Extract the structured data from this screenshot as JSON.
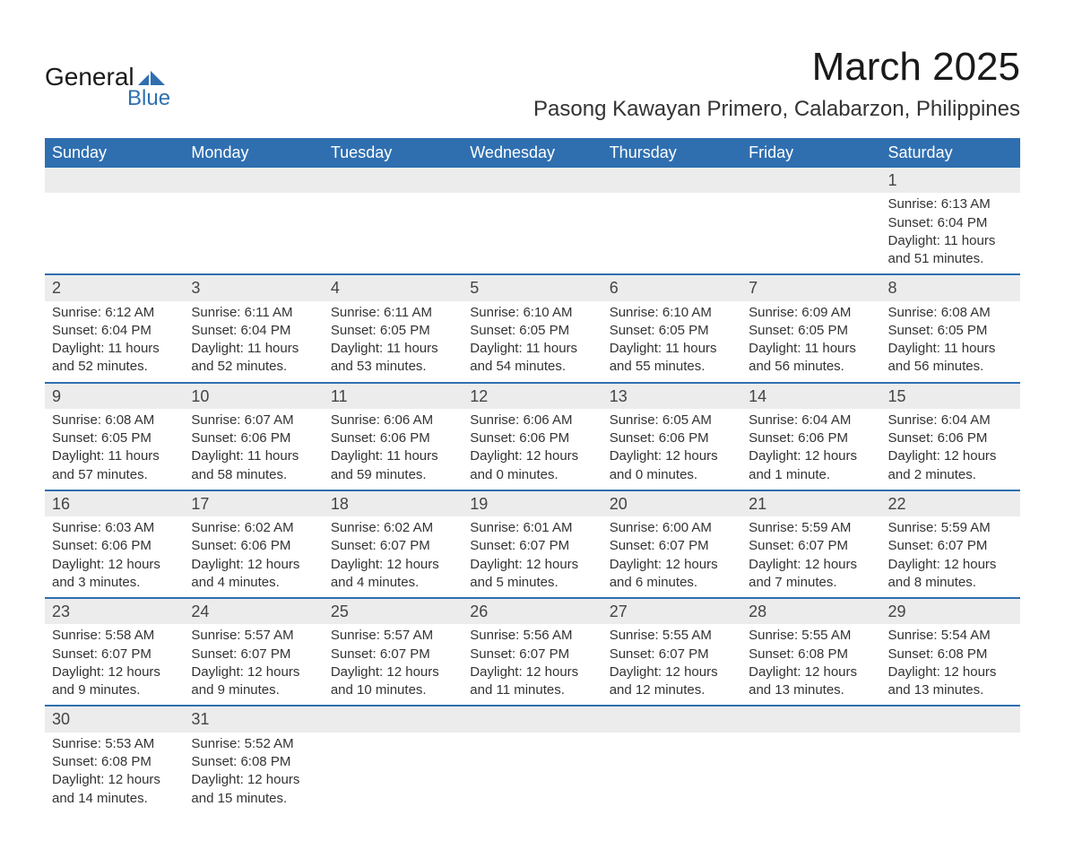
{
  "brand": {
    "line1": "General",
    "line2": "Blue",
    "logo_color": "#2f6fb0"
  },
  "title": "March 2025",
  "location": "Pasong Kawayan Primero, Calabarzon, Philippines",
  "theme": {
    "header_bg": "#2f6fb0",
    "header_text": "#ffffff",
    "daynum_bg": "#ececec",
    "border": "#2f6fb0",
    "text": "#333333"
  },
  "weekdays": [
    "Sunday",
    "Monday",
    "Tuesday",
    "Wednesday",
    "Thursday",
    "Friday",
    "Saturday"
  ],
  "weeks": [
    [
      null,
      null,
      null,
      null,
      null,
      null,
      {
        "n": "1",
        "sr": "Sunrise: 6:13 AM",
        "ss": "Sunset: 6:04 PM",
        "d1": "Daylight: 11 hours",
        "d2": "and 51 minutes."
      }
    ],
    [
      {
        "n": "2",
        "sr": "Sunrise: 6:12 AM",
        "ss": "Sunset: 6:04 PM",
        "d1": "Daylight: 11 hours",
        "d2": "and 52 minutes."
      },
      {
        "n": "3",
        "sr": "Sunrise: 6:11 AM",
        "ss": "Sunset: 6:04 PM",
        "d1": "Daylight: 11 hours",
        "d2": "and 52 minutes."
      },
      {
        "n": "4",
        "sr": "Sunrise: 6:11 AM",
        "ss": "Sunset: 6:05 PM",
        "d1": "Daylight: 11 hours",
        "d2": "and 53 minutes."
      },
      {
        "n": "5",
        "sr": "Sunrise: 6:10 AM",
        "ss": "Sunset: 6:05 PM",
        "d1": "Daylight: 11 hours",
        "d2": "and 54 minutes."
      },
      {
        "n": "6",
        "sr": "Sunrise: 6:10 AM",
        "ss": "Sunset: 6:05 PM",
        "d1": "Daylight: 11 hours",
        "d2": "and 55 minutes."
      },
      {
        "n": "7",
        "sr": "Sunrise: 6:09 AM",
        "ss": "Sunset: 6:05 PM",
        "d1": "Daylight: 11 hours",
        "d2": "and 56 minutes."
      },
      {
        "n": "8",
        "sr": "Sunrise: 6:08 AM",
        "ss": "Sunset: 6:05 PM",
        "d1": "Daylight: 11 hours",
        "d2": "and 56 minutes."
      }
    ],
    [
      {
        "n": "9",
        "sr": "Sunrise: 6:08 AM",
        "ss": "Sunset: 6:05 PM",
        "d1": "Daylight: 11 hours",
        "d2": "and 57 minutes."
      },
      {
        "n": "10",
        "sr": "Sunrise: 6:07 AM",
        "ss": "Sunset: 6:06 PM",
        "d1": "Daylight: 11 hours",
        "d2": "and 58 minutes."
      },
      {
        "n": "11",
        "sr": "Sunrise: 6:06 AM",
        "ss": "Sunset: 6:06 PM",
        "d1": "Daylight: 11 hours",
        "d2": "and 59 minutes."
      },
      {
        "n": "12",
        "sr": "Sunrise: 6:06 AM",
        "ss": "Sunset: 6:06 PM",
        "d1": "Daylight: 12 hours",
        "d2": "and 0 minutes."
      },
      {
        "n": "13",
        "sr": "Sunrise: 6:05 AM",
        "ss": "Sunset: 6:06 PM",
        "d1": "Daylight: 12 hours",
        "d2": "and 0 minutes."
      },
      {
        "n": "14",
        "sr": "Sunrise: 6:04 AM",
        "ss": "Sunset: 6:06 PM",
        "d1": "Daylight: 12 hours",
        "d2": "and 1 minute."
      },
      {
        "n": "15",
        "sr": "Sunrise: 6:04 AM",
        "ss": "Sunset: 6:06 PM",
        "d1": "Daylight: 12 hours",
        "d2": "and 2 minutes."
      }
    ],
    [
      {
        "n": "16",
        "sr": "Sunrise: 6:03 AM",
        "ss": "Sunset: 6:06 PM",
        "d1": "Daylight: 12 hours",
        "d2": "and 3 minutes."
      },
      {
        "n": "17",
        "sr": "Sunrise: 6:02 AM",
        "ss": "Sunset: 6:06 PM",
        "d1": "Daylight: 12 hours",
        "d2": "and 4 minutes."
      },
      {
        "n": "18",
        "sr": "Sunrise: 6:02 AM",
        "ss": "Sunset: 6:07 PM",
        "d1": "Daylight: 12 hours",
        "d2": "and 4 minutes."
      },
      {
        "n": "19",
        "sr": "Sunrise: 6:01 AM",
        "ss": "Sunset: 6:07 PM",
        "d1": "Daylight: 12 hours",
        "d2": "and 5 minutes."
      },
      {
        "n": "20",
        "sr": "Sunrise: 6:00 AM",
        "ss": "Sunset: 6:07 PM",
        "d1": "Daylight: 12 hours",
        "d2": "and 6 minutes."
      },
      {
        "n": "21",
        "sr": "Sunrise: 5:59 AM",
        "ss": "Sunset: 6:07 PM",
        "d1": "Daylight: 12 hours",
        "d2": "and 7 minutes."
      },
      {
        "n": "22",
        "sr": "Sunrise: 5:59 AM",
        "ss": "Sunset: 6:07 PM",
        "d1": "Daylight: 12 hours",
        "d2": "and 8 minutes."
      }
    ],
    [
      {
        "n": "23",
        "sr": "Sunrise: 5:58 AM",
        "ss": "Sunset: 6:07 PM",
        "d1": "Daylight: 12 hours",
        "d2": "and 9 minutes."
      },
      {
        "n": "24",
        "sr": "Sunrise: 5:57 AM",
        "ss": "Sunset: 6:07 PM",
        "d1": "Daylight: 12 hours",
        "d2": "and 9 minutes."
      },
      {
        "n": "25",
        "sr": "Sunrise: 5:57 AM",
        "ss": "Sunset: 6:07 PM",
        "d1": "Daylight: 12 hours",
        "d2": "and 10 minutes."
      },
      {
        "n": "26",
        "sr": "Sunrise: 5:56 AM",
        "ss": "Sunset: 6:07 PM",
        "d1": "Daylight: 12 hours",
        "d2": "and 11 minutes."
      },
      {
        "n": "27",
        "sr": "Sunrise: 5:55 AM",
        "ss": "Sunset: 6:07 PM",
        "d1": "Daylight: 12 hours",
        "d2": "and 12 minutes."
      },
      {
        "n": "28",
        "sr": "Sunrise: 5:55 AM",
        "ss": "Sunset: 6:08 PM",
        "d1": "Daylight: 12 hours",
        "d2": "and 13 minutes."
      },
      {
        "n": "29",
        "sr": "Sunrise: 5:54 AM",
        "ss": "Sunset: 6:08 PM",
        "d1": "Daylight: 12 hours",
        "d2": "and 13 minutes."
      }
    ],
    [
      {
        "n": "30",
        "sr": "Sunrise: 5:53 AM",
        "ss": "Sunset: 6:08 PM",
        "d1": "Daylight: 12 hours",
        "d2": "and 14 minutes."
      },
      {
        "n": "31",
        "sr": "Sunrise: 5:52 AM",
        "ss": "Sunset: 6:08 PM",
        "d1": "Daylight: 12 hours",
        "d2": "and 15 minutes."
      },
      null,
      null,
      null,
      null,
      null
    ]
  ]
}
